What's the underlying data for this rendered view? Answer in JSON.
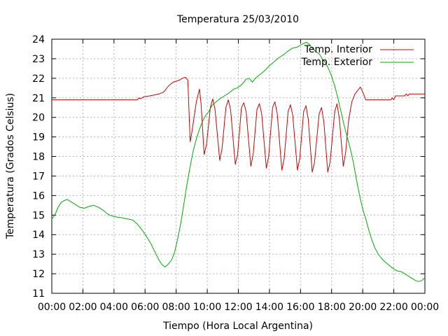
{
  "chart_data": {
    "type": "line",
    "title": "Temperatura 25/03/2010",
    "xlabel": "Tiempo (Hora Local Argentina)",
    "ylabel": "Temperatura (Grados Celsius)",
    "xlim": [
      0,
      24
    ],
    "ylim": [
      11,
      24
    ],
    "x_ticks": [
      {
        "value": 0,
        "label": "00:00"
      },
      {
        "value": 2,
        "label": "02:00"
      },
      {
        "value": 4,
        "label": "04:00"
      },
      {
        "value": 6,
        "label": "06:00"
      },
      {
        "value": 8,
        "label": "08:00"
      },
      {
        "value": 10,
        "label": "10:00"
      },
      {
        "value": 12,
        "label": "12:00"
      },
      {
        "value": 14,
        "label": "14:00"
      },
      {
        "value": 16,
        "label": "16:00"
      },
      {
        "value": 18,
        "label": "18:00"
      },
      {
        "value": 20,
        "label": "20:00"
      },
      {
        "value": 22,
        "label": "22:00"
      },
      {
        "value": 24,
        "label": "00:00"
      }
    ],
    "y_ticks": [
      {
        "value": 11,
        "label": "11"
      },
      {
        "value": 12,
        "label": "12"
      },
      {
        "value": 13,
        "label": "13"
      },
      {
        "value": 14,
        "label": "14"
      },
      {
        "value": 15,
        "label": "15"
      },
      {
        "value": 16,
        "label": "16"
      },
      {
        "value": 17,
        "label": "17"
      },
      {
        "value": 18,
        "label": "18"
      },
      {
        "value": 19,
        "label": "19"
      },
      {
        "value": 20,
        "label": "20"
      },
      {
        "value": 21,
        "label": "21"
      },
      {
        "value": 22,
        "label": "22"
      },
      {
        "value": 23,
        "label": "23"
      },
      {
        "value": 24,
        "label": "24"
      }
    ],
    "grid": true,
    "legend_position": "top-right",
    "series": [
      {
        "name": "Temp. Interior",
        "color": "#cc0000",
        "points": [
          [
            0,
            20.9
          ],
          [
            5.5,
            20.9
          ],
          [
            5.6,
            21.0
          ],
          [
            5.7,
            20.95
          ],
          [
            5.9,
            21.05
          ],
          [
            6.3,
            21.1
          ],
          [
            6.6,
            21.15
          ],
          [
            6.9,
            21.2
          ],
          [
            7.2,
            21.3
          ],
          [
            7.5,
            21.6
          ],
          [
            7.8,
            21.8
          ],
          [
            8.2,
            21.9
          ],
          [
            8.4,
            22.0
          ],
          [
            8.6,
            22.05
          ],
          [
            8.75,
            21.9
          ],
          [
            8.9,
            18.75
          ],
          [
            9.0,
            19.2
          ],
          [
            9.3,
            20.8
          ],
          [
            9.5,
            21.45
          ],
          [
            9.6,
            20.7
          ],
          [
            9.8,
            18.1
          ],
          [
            9.95,
            18.6
          ],
          [
            10.2,
            20.5
          ],
          [
            10.35,
            20.95
          ],
          [
            10.5,
            20.4
          ],
          [
            10.8,
            17.8
          ],
          [
            10.95,
            18.4
          ],
          [
            11.2,
            20.5
          ],
          [
            11.35,
            20.9
          ],
          [
            11.5,
            20.4
          ],
          [
            11.8,
            17.6
          ],
          [
            11.95,
            18.1
          ],
          [
            12.2,
            20.5
          ],
          [
            12.35,
            20.75
          ],
          [
            12.5,
            20.3
          ],
          [
            12.8,
            17.5
          ],
          [
            12.95,
            18.1
          ],
          [
            13.2,
            20.4
          ],
          [
            13.35,
            20.7
          ],
          [
            13.5,
            20.2
          ],
          [
            13.8,
            17.4
          ],
          [
            13.95,
            18.0
          ],
          [
            14.2,
            20.5
          ],
          [
            14.35,
            20.8
          ],
          [
            14.5,
            20.2
          ],
          [
            14.8,
            17.3
          ],
          [
            14.95,
            17.9
          ],
          [
            15.2,
            20.3
          ],
          [
            15.35,
            20.65
          ],
          [
            15.5,
            20.1
          ],
          [
            15.8,
            17.3
          ],
          [
            15.95,
            17.9
          ],
          [
            16.2,
            20.3
          ],
          [
            16.35,
            20.6
          ],
          [
            16.5,
            19.9
          ],
          [
            16.75,
            17.2
          ],
          [
            16.9,
            17.7
          ],
          [
            17.2,
            20.2
          ],
          [
            17.35,
            20.5
          ],
          [
            17.5,
            19.8
          ],
          [
            17.75,
            17.2
          ],
          [
            17.9,
            17.7
          ],
          [
            18.2,
            20.3
          ],
          [
            18.35,
            20.7
          ],
          [
            18.5,
            19.9
          ],
          [
            18.75,
            17.5
          ],
          [
            18.9,
            18.2
          ],
          [
            19.1,
            19.9
          ],
          [
            19.3,
            20.8
          ],
          [
            19.5,
            21.2
          ],
          [
            19.7,
            21.4
          ],
          [
            19.85,
            21.55
          ],
          [
            20.0,
            21.3
          ],
          [
            20.2,
            20.9
          ],
          [
            21.0,
            20.9
          ],
          [
            21.8,
            20.9
          ],
          [
            21.9,
            21.0
          ],
          [
            22.0,
            20.9
          ],
          [
            22.1,
            21.1
          ],
          [
            22.7,
            21.1
          ],
          [
            22.8,
            21.2
          ],
          [
            22.9,
            21.1
          ],
          [
            23.0,
            21.2
          ],
          [
            24.0,
            21.2
          ]
        ]
      },
      {
        "name": "Temp. Exterior",
        "color": "#00aa00",
        "points": [
          [
            0,
            14.8
          ],
          [
            0.2,
            15.0
          ],
          [
            0.4,
            15.4
          ],
          [
            0.6,
            15.65
          ],
          [
            0.8,
            15.75
          ],
          [
            1.0,
            15.8
          ],
          [
            1.2,
            15.7
          ],
          [
            1.5,
            15.55
          ],
          [
            1.8,
            15.4
          ],
          [
            2.1,
            15.35
          ],
          [
            2.4,
            15.45
          ],
          [
            2.7,
            15.5
          ],
          [
            3.0,
            15.4
          ],
          [
            3.3,
            15.25
          ],
          [
            3.6,
            15.05
          ],
          [
            3.9,
            14.95
          ],
          [
            4.2,
            14.9
          ],
          [
            4.6,
            14.85
          ],
          [
            4.9,
            14.8
          ],
          [
            5.2,
            14.75
          ],
          [
            5.5,
            14.55
          ],
          [
            5.8,
            14.25
          ],
          [
            6.1,
            13.9
          ],
          [
            6.4,
            13.5
          ],
          [
            6.7,
            13.0
          ],
          [
            6.9,
            12.7
          ],
          [
            7.1,
            12.45
          ],
          [
            7.3,
            12.35
          ],
          [
            7.5,
            12.5
          ],
          [
            7.7,
            12.7
          ],
          [
            7.9,
            13.1
          ],
          [
            8.1,
            13.8
          ],
          [
            8.3,
            14.6
          ],
          [
            8.5,
            15.6
          ],
          [
            8.7,
            16.6
          ],
          [
            8.9,
            17.5
          ],
          [
            9.1,
            18.3
          ],
          [
            9.3,
            18.9
          ],
          [
            9.5,
            19.4
          ],
          [
            9.7,
            19.8
          ],
          [
            9.9,
            20.1
          ],
          [
            10.1,
            20.3
          ],
          [
            10.3,
            20.6
          ],
          [
            10.5,
            20.75
          ],
          [
            10.8,
            20.95
          ],
          [
            11.1,
            21.1
          ],
          [
            11.4,
            21.25
          ],
          [
            11.7,
            21.45
          ],
          [
            11.9,
            21.5
          ],
          [
            12.1,
            21.6
          ],
          [
            12.3,
            21.75
          ],
          [
            12.5,
            21.95
          ],
          [
            12.7,
            22.0
          ],
          [
            12.9,
            21.8
          ],
          [
            13.1,
            22.0
          ],
          [
            13.4,
            22.2
          ],
          [
            13.7,
            22.4
          ],
          [
            14.0,
            22.65
          ],
          [
            14.3,
            22.85
          ],
          [
            14.6,
            23.05
          ],
          [
            14.9,
            23.2
          ],
          [
            15.2,
            23.4
          ],
          [
            15.5,
            23.55
          ],
          [
            15.8,
            23.6
          ],
          [
            16.1,
            23.75
          ],
          [
            16.4,
            23.85
          ],
          [
            16.6,
            23.7
          ],
          [
            16.8,
            23.5
          ],
          [
            17.0,
            23.35
          ],
          [
            17.2,
            23.25
          ],
          [
            17.4,
            23.0
          ],
          [
            17.6,
            22.8
          ],
          [
            17.8,
            22.5
          ],
          [
            18.0,
            22.1
          ],
          [
            18.2,
            21.6
          ],
          [
            18.4,
            21.0
          ],
          [
            18.6,
            20.3
          ],
          [
            18.8,
            19.6
          ],
          [
            19.0,
            19.0
          ],
          [
            19.2,
            18.4
          ],
          [
            19.4,
            17.7
          ],
          [
            19.6,
            16.8
          ],
          [
            19.8,
            16.0
          ],
          [
            20.0,
            15.3
          ],
          [
            20.2,
            14.8
          ],
          [
            20.4,
            14.2
          ],
          [
            20.6,
            13.7
          ],
          [
            20.8,
            13.3
          ],
          [
            21.0,
            13.0
          ],
          [
            21.3,
            12.7
          ],
          [
            21.6,
            12.5
          ],
          [
            21.9,
            12.3
          ],
          [
            22.2,
            12.15
          ],
          [
            22.5,
            12.1
          ],
          [
            22.8,
            11.95
          ],
          [
            23.1,
            11.8
          ],
          [
            23.4,
            11.65
          ],
          [
            23.6,
            11.6
          ],
          [
            23.8,
            11.65
          ],
          [
            24.0,
            11.8
          ]
        ]
      }
    ]
  }
}
